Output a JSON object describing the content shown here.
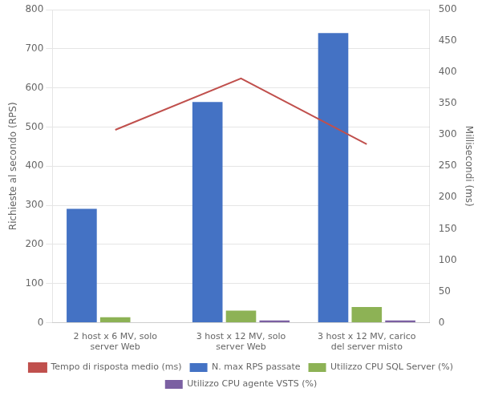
{
  "chart_data": {
    "type": "bar",
    "categories": [
      "2 host x 6 MV, solo\nserver Web",
      "3 host x 12 MV, solo\nserver Web",
      "3 host x 12 MV, carico\ndel server misto"
    ],
    "series": [
      {
        "name": "N. max RPS passate",
        "color": "#4472C4",
        "values": [
          291,
          564,
          740
        ]
      },
      {
        "name": "Utilizzo CPU SQL Server (%)",
        "color": "#8DB255",
        "values": [
          14,
          31,
          40
        ]
      },
      {
        "name": "Utilizzo CPU agente VSTS (%)",
        "color": "#7B60A2",
        "values": [
          0,
          6,
          6
        ]
      },
      {
        "name": "Tempo di risposta medio (ms)",
        "type": "line",
        "color": "#C0504D",
        "marker": "none",
        "axis": "y2",
        "values": [
          308,
          390,
          285
        ]
      }
    ],
    "ylabel": "Richieste al secondo (RPS)",
    "y2label": "Millisecondi (ms)",
    "ylim": [
      0,
      800
    ],
    "yticks": [
      0,
      100,
      200,
      300,
      400,
      500,
      600,
      700,
      800
    ],
    "y2lim": [
      0,
      500
    ],
    "y2ticks": [
      0,
      50,
      100,
      150,
      200,
      250,
      300,
      350,
      400,
      450,
      500
    ],
    "grid": true,
    "legend": "bottom"
  }
}
